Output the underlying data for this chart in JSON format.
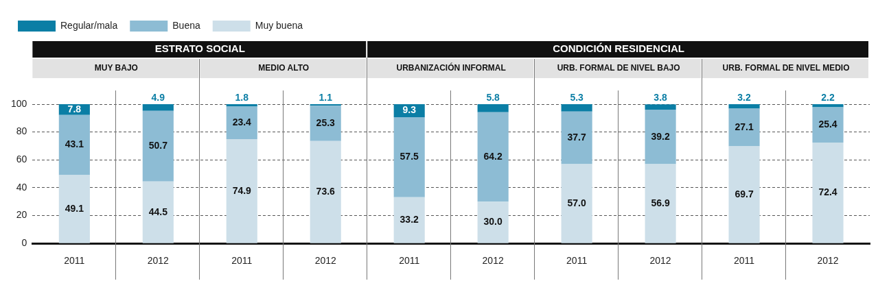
{
  "chart_data": {
    "type": "bar",
    "stacked": true,
    "categories": [
      "2011",
      "2012",
      "2011",
      "2012",
      "2011",
      "2012",
      "2011",
      "2012",
      "2011",
      "2012"
    ],
    "series": [
      {
        "name": "Muy buena",
        "color": "#cddfe9",
        "values": [
          49.1,
          44.5,
          74.9,
          73.6,
          33.2,
          30.0,
          57.0,
          56.9,
          69.7,
          72.4
        ],
        "value_labels": [
          "49.1",
          "44.5",
          "74.9",
          "73.6",
          "33.2",
          "30.0",
          "57.0",
          "56.9",
          "69.7",
          "72.4"
        ]
      },
      {
        "name": "Buena",
        "color": "#8dbcd4",
        "values": [
          43.1,
          50.7,
          23.4,
          25.3,
          57.5,
          64.2,
          37.7,
          39.2,
          27.1,
          25.4
        ],
        "value_labels": [
          "43.1",
          "50.7",
          "23.4",
          "25.3",
          "57.5",
          "64.2",
          "37.7",
          "39.2",
          "27.1",
          "25.4"
        ]
      },
      {
        "name": "Regular/mala",
        "color": "#0b7ea5",
        "values": [
          7.8,
          4.9,
          1.8,
          1.1,
          9.3,
          5.8,
          5.3,
          3.8,
          3.2,
          2.2
        ],
        "value_labels": [
          "7.8",
          "4.9",
          "1.8",
          "1.1",
          "9.3",
          "5.8",
          "5.3",
          "3.8",
          "3.2",
          "2.2"
        ]
      }
    ],
    "annotations": [
      "ESTRATO SOCIAL",
      "CONDICIÓN RESIDENCIAL",
      "MUY BAJO",
      "MEDIO ALTO",
      "URBANIZACIÓN INFORMAL",
      "URB. FORMAL DE NIVEL BAJO",
      "URB. FORMAL DE NIVEL MEDIO"
    ],
    "ylim": [
      0,
      100
    ],
    "yticks": [
      0,
      20,
      40,
      60,
      80,
      100
    ],
    "grid": "y",
    "legend": "top left"
  }
}
